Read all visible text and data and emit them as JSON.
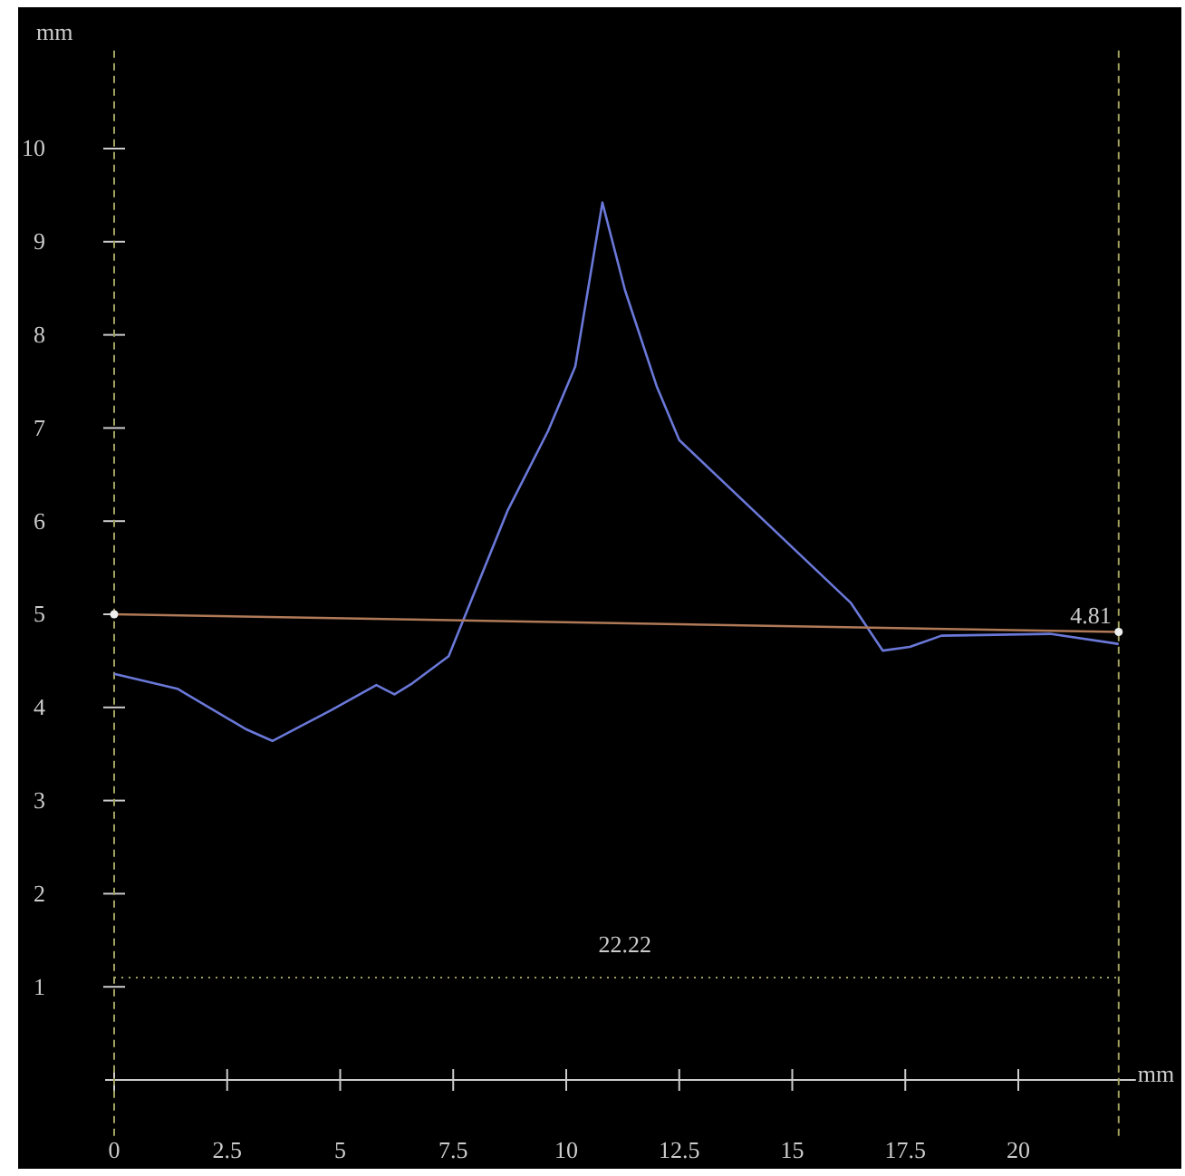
{
  "chart_data": {
    "type": "line",
    "xlabel": "mm",
    "ylabel": "mm",
    "xlim": [
      -0.2,
      22.6
    ],
    "ylim": [
      -0.6,
      11.1
    ],
    "xticks": [
      0,
      2.5,
      5,
      7.5,
      10,
      12.5,
      15,
      17.5,
      20
    ],
    "yticks": [
      1,
      2,
      3,
      4,
      5,
      6,
      7,
      8,
      9,
      10
    ],
    "grid": false,
    "annotations": [
      "22.22"
    ],
    "line_style": "solid",
    "series": [
      {
        "color": "#6a78d8",
        "marker": "none",
        "x": [
          0,
          1.4,
          2.9,
          3.5,
          4.8,
          5.8,
          6.2,
          6.6,
          7.4,
          8.7,
          9.6,
          10.2,
          10.8,
          11.3,
          12.0,
          12.5,
          16.3,
          17.0,
          17.6,
          18.3,
          20.7,
          22.1,
          22.22
        ],
        "values": [
          4.36,
          4.2,
          3.77,
          3.64,
          3.97,
          4.24,
          4.14,
          4.26,
          4.55,
          6.11,
          6.97,
          7.66,
          9.42,
          8.48,
          7.45,
          6.87,
          5.12,
          4.61,
          4.65,
          4.77,
          4.79,
          4.69,
          4.68
        ]
      },
      {
        "color": "#b07a58",
        "marker": "circle",
        "x": [
          0,
          22.22
        ],
        "values": [
          5,
          4.81
        ],
        "value_labels": [
          null,
          "4.81"
        ]
      }
    ],
    "ref_lines": [
      {
        "axis": "x",
        "value": 0,
        "line_style": "dashed",
        "color": "#a0a060"
      },
      {
        "axis": "x",
        "value": 22.22,
        "line_style": "dashed",
        "color": "#a0a060"
      },
      {
        "axis": "y",
        "value": 1.1,
        "line_style": "dotted",
        "color": "#a0a060"
      }
    ]
  }
}
